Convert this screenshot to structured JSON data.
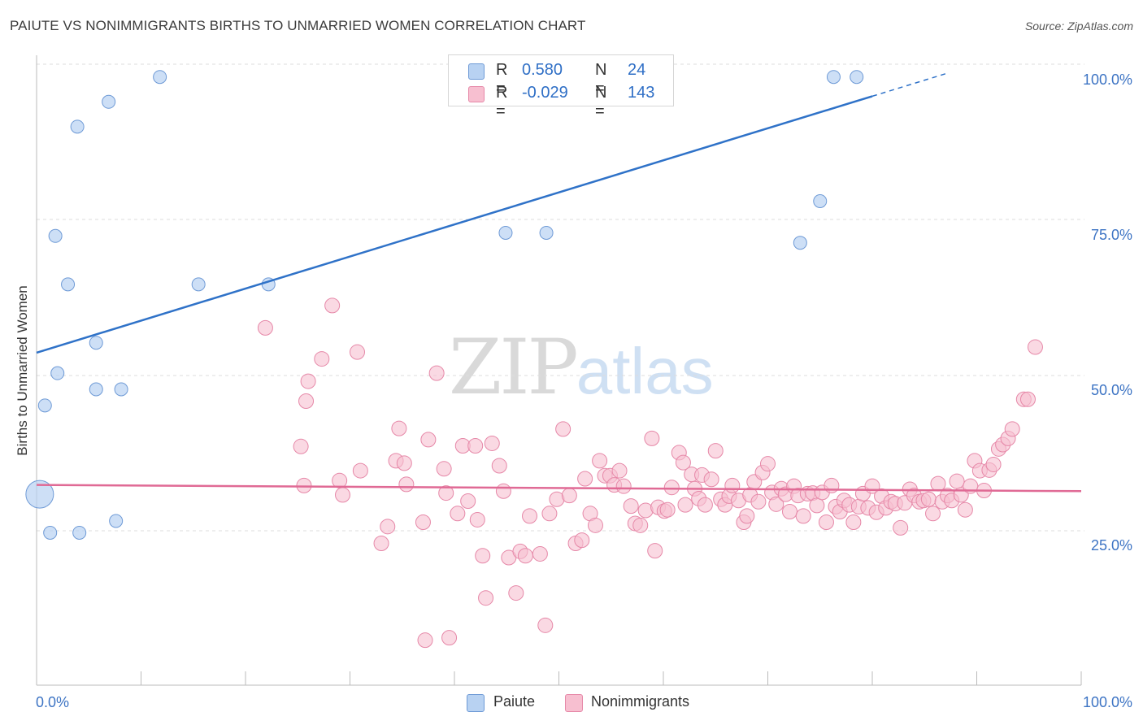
{
  "header": {
    "title": "PAIUTE VS NONIMMIGRANTS BIRTHS TO UNMARRIED WOMEN CORRELATION CHART",
    "source": "Source: ZipAtlas.com"
  },
  "watermark": {
    "zip": "ZIP",
    "atlas": "atlas"
  },
  "legend": {
    "rows": [
      {
        "r_label": "R =",
        "r_value": "0.580",
        "n_label": "N =",
        "n_value": "24"
      },
      {
        "r_label": "R =",
        "r_value": "-0.029",
        "n_label": "N =",
        "n_value": "143"
      }
    ],
    "bottom": [
      {
        "label": "Paiute"
      },
      {
        "label": "Nonimmigrants"
      }
    ]
  },
  "colors": {
    "paiute_fill": "#b8d2f2",
    "paiute_stroke": "#6e9ad6",
    "paiute_line": "#2f72c8",
    "nonimm_fill": "#f7bfd0",
    "nonimm_stroke": "#e688a8",
    "nonimm_line": "#e06a95",
    "tick_label": "#3d74c4",
    "grid": "#dddddd"
  },
  "chart_data": {
    "type": "scatter",
    "title": "PAIUTE VS NONIMMIGRANTS BIRTHS TO UNMARRIED WOMEN CORRELATION CHART",
    "xlabel": "",
    "ylabel": "Births to Unmarried Women",
    "xlim": [
      0,
      100
    ],
    "ylim": [
      0,
      103
    ],
    "x_tick_labels": [
      "0.0%",
      "100.0%"
    ],
    "y_ticks": [
      25,
      50,
      75,
      100
    ],
    "y_tick_labels": [
      "25.0%",
      "50.0%",
      "75.0%",
      "100.0%"
    ],
    "grid": "horizontal dashed",
    "series": [
      {
        "name": "Paiute",
        "color": "#b8d2f2",
        "r": 0.58,
        "n": 24,
        "trend": {
          "x0": 0,
          "y0": 55.9,
          "x1": 80,
          "y1": 97.2,
          "dashed_to_x": 100
        },
        "points": [
          [
            0.3,
            33.1,
            "large"
          ],
          [
            0.8,
            47.4
          ],
          [
            1.3,
            26.9
          ],
          [
            1.8,
            74.7
          ],
          [
            2.0,
            52.6
          ],
          [
            3.0,
            66.9
          ],
          [
            3.9,
            92.3
          ],
          [
            4.1,
            26.9
          ],
          [
            5.7,
            57.5
          ],
          [
            5.7,
            50.0
          ],
          [
            6.9,
            96.3
          ],
          [
            7.6,
            28.8
          ],
          [
            8.1,
            50.0
          ],
          [
            11.8,
            100.3
          ],
          [
            15.5,
            66.9
          ],
          [
            22.2,
            66.9
          ],
          [
            44.9,
            75.2
          ],
          [
            45.5,
            100.3
          ],
          [
            48.8,
            75.2
          ],
          [
            73.1,
            73.6
          ],
          [
            75.0,
            80.3
          ],
          [
            76.3,
            100.3
          ],
          [
            78.5,
            100.3
          ]
        ]
      },
      {
        "name": "Nonimmigrants",
        "color": "#f7bfd0",
        "r": -0.029,
        "n": 143,
        "trend": {
          "x0": 0,
          "y0": 34.6,
          "x1": 100,
          "y1": 33.6
        },
        "points": [
          [
            21.9,
            59.9
          ],
          [
            25.3,
            40.8
          ],
          [
            25.6,
            34.5
          ],
          [
            25.8,
            48.1
          ],
          [
            26.0,
            51.3
          ],
          [
            27.3,
            54.9
          ],
          [
            28.3,
            63.5
          ],
          [
            29.0,
            35.3
          ],
          [
            29.3,
            33.0
          ],
          [
            30.7,
            56.0
          ],
          [
            31.0,
            36.9
          ],
          [
            33.0,
            25.2
          ],
          [
            33.6,
            27.9
          ],
          [
            34.4,
            38.5
          ],
          [
            34.7,
            43.7
          ],
          [
            35.2,
            38.1
          ],
          [
            35.4,
            34.7
          ],
          [
            37.0,
            28.6
          ],
          [
            37.2,
            9.6
          ],
          [
            37.5,
            41.9
          ],
          [
            38.3,
            52.6
          ],
          [
            39.0,
            37.2
          ],
          [
            39.2,
            33.3
          ],
          [
            39.5,
            10.0
          ],
          [
            40.3,
            30.0
          ],
          [
            40.8,
            40.9
          ],
          [
            41.3,
            32.0
          ],
          [
            42.0,
            40.9
          ],
          [
            42.2,
            29.0
          ],
          [
            42.7,
            23.2
          ],
          [
            43.0,
            16.4
          ],
          [
            43.6,
            41.3
          ],
          [
            44.3,
            37.7
          ],
          [
            44.7,
            33.6
          ],
          [
            45.2,
            22.9
          ],
          [
            45.9,
            17.2
          ],
          [
            46.3,
            23.9
          ],
          [
            46.8,
            23.2
          ],
          [
            47.2,
            29.6
          ],
          [
            48.2,
            23.5
          ],
          [
            48.7,
            12.0
          ],
          [
            49.1,
            30.0
          ],
          [
            49.8,
            32.3
          ],
          [
            50.4,
            43.6
          ],
          [
            51.0,
            32.9
          ],
          [
            51.6,
            25.2
          ],
          [
            52.2,
            25.7
          ],
          [
            52.5,
            35.6
          ],
          [
            53.0,
            30.0
          ],
          [
            53.5,
            28.1
          ],
          [
            53.9,
            38.5
          ],
          [
            54.4,
            36.1
          ],
          [
            54.9,
            36.1
          ],
          [
            55.3,
            34.6
          ],
          [
            55.8,
            36.9
          ],
          [
            56.2,
            34.4
          ],
          [
            56.9,
            31.2
          ],
          [
            57.3,
            28.4
          ],
          [
            57.8,
            28.1
          ],
          [
            58.3,
            30.5
          ],
          [
            58.9,
            42.1
          ],
          [
            59.2,
            24.0
          ],
          [
            59.5,
            31.0
          ],
          [
            60.1,
            30.4
          ],
          [
            60.4,
            30.6
          ],
          [
            60.8,
            34.2
          ],
          [
            61.5,
            39.8
          ],
          [
            61.9,
            38.2
          ],
          [
            62.1,
            31.4
          ],
          [
            62.7,
            36.3
          ],
          [
            63.0,
            34.0
          ],
          [
            63.4,
            32.4
          ],
          [
            63.7,
            36.2
          ],
          [
            64.0,
            31.4
          ],
          [
            64.6,
            35.5
          ],
          [
            65.0,
            40.1
          ],
          [
            65.5,
            32.3
          ],
          [
            65.9,
            31.4
          ],
          [
            66.3,
            32.8
          ],
          [
            66.6,
            34.5
          ],
          [
            67.2,
            32.1
          ],
          [
            67.7,
            28.6
          ],
          [
            68.0,
            29.6
          ],
          [
            68.3,
            33.0
          ],
          [
            68.7,
            35.1
          ],
          [
            69.1,
            31.9
          ],
          [
            69.5,
            36.6
          ],
          [
            70.0,
            38.0
          ],
          [
            70.4,
            33.4
          ],
          [
            70.8,
            31.5
          ],
          [
            71.3,
            34.0
          ],
          [
            71.7,
            33.1
          ],
          [
            72.1,
            30.3
          ],
          [
            72.5,
            34.4
          ],
          [
            72.9,
            32.9
          ],
          [
            73.4,
            29.6
          ],
          [
            73.8,
            33.2
          ],
          [
            74.3,
            33.3
          ],
          [
            74.7,
            31.3
          ],
          [
            75.2,
            33.4
          ],
          [
            75.6,
            28.6
          ],
          [
            76.1,
            34.5
          ],
          [
            76.5,
            31.1
          ],
          [
            76.9,
            30.3
          ],
          [
            77.3,
            32.1
          ],
          [
            77.8,
            31.4
          ],
          [
            78.2,
            28.6
          ],
          [
            78.7,
            31.1
          ],
          [
            79.1,
            33.2
          ],
          [
            79.6,
            30.9
          ],
          [
            80.0,
            34.4
          ],
          [
            80.4,
            30.2
          ],
          [
            80.9,
            32.8
          ],
          [
            81.3,
            30.9
          ],
          [
            81.8,
            31.9
          ],
          [
            82.2,
            31.6
          ],
          [
            82.7,
            27.7
          ],
          [
            83.1,
            31.7
          ],
          [
            83.6,
            33.9
          ],
          [
            84.0,
            32.9
          ],
          [
            84.5,
            31.9
          ],
          [
            84.9,
            32.1
          ],
          [
            85.4,
            32.3
          ],
          [
            85.8,
            30.0
          ],
          [
            86.3,
            34.8
          ],
          [
            86.7,
            31.9
          ],
          [
            87.2,
            32.9
          ],
          [
            87.6,
            32.1
          ],
          [
            88.1,
            35.2
          ],
          [
            88.5,
            33.0
          ],
          [
            88.9,
            30.6
          ],
          [
            89.4,
            34.4
          ],
          [
            89.8,
            38.5
          ],
          [
            90.3,
            36.9
          ],
          [
            90.7,
            33.7
          ],
          [
            91.2,
            37.0
          ],
          [
            91.6,
            37.9
          ],
          [
            92.1,
            40.4
          ],
          [
            92.5,
            41.1
          ],
          [
            93.0,
            42.1
          ],
          [
            93.4,
            43.6
          ],
          [
            94.5,
            48.4
          ],
          [
            94.9,
            48.4
          ],
          [
            95.6,
            56.8
          ]
        ]
      }
    ]
  },
  "axis": {
    "ylabel": "Births to Unmarried Women"
  }
}
